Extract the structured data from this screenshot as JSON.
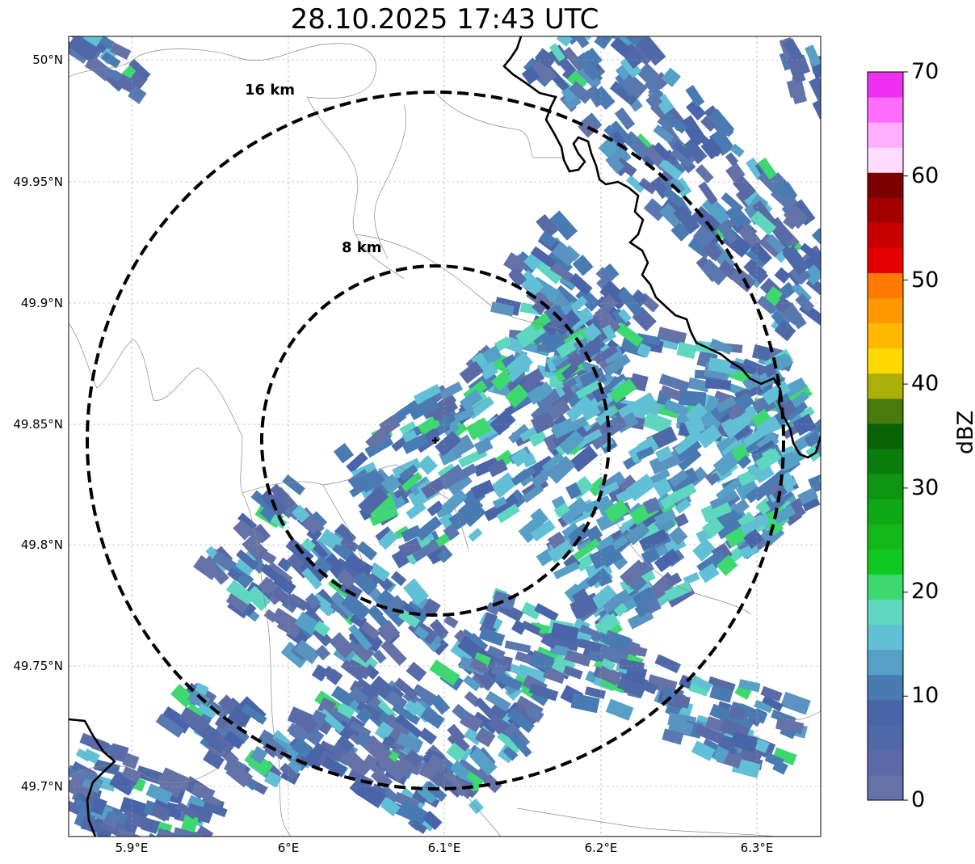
{
  "title": "28.10.2025 17:43 UTC",
  "map": {
    "lat_ticks": [
      "50°N",
      "49.95°N",
      "49.9°N",
      "49.85°N",
      "49.8°N",
      "49.75°N",
      "49.7°N"
    ],
    "lon_ticks": [
      "5.9°E",
      "6°E",
      "6.1°E",
      "6.2°E",
      "6.3°E"
    ],
    "radar_site": {
      "lon": 6.093,
      "lat": 49.843
    },
    "rings": [
      {
        "label": "8 km",
        "radius_km": 8
      },
      {
        "label": "16 km",
        "radius_km": 16
      }
    ],
    "gridlines": true
  },
  "colorbar": {
    "label": "dBZ",
    "ticks": [
      "0",
      "10",
      "20",
      "30",
      "40",
      "50",
      "60",
      "70"
    ],
    "colors": [
      "#6472a8",
      "#5a6aa6",
      "#4f68a8",
      "#4a64aa",
      "#4a7ab2",
      "#56a0c8",
      "#62c0d6",
      "#5ed6c0",
      "#3ed870",
      "#10c820",
      "#12b818",
      "#10a814",
      "#0e9612",
      "#0a7e0c",
      "#066406",
      "#487a0c",
      "#aab008",
      "#ffd800",
      "#ffb800",
      "#ff9800",
      "#ff7800",
      "#e40000",
      "#c80000",
      "#a40000",
      "#7c0000",
      "#fedcfe",
      "#ffaeff",
      "#ff6cfe",
      "#f030f0"
    ]
  }
}
